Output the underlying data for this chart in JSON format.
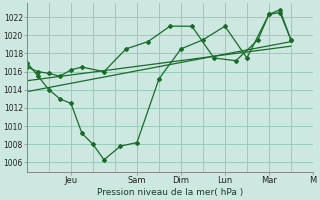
{
  "background_color": "#cce8e0",
  "grid_color": "#99ccbb",
  "line_color": "#1a6b2a",
  "title": "Pression niveau de la mer( hPa )",
  "ylabel_ticks": [
    1006,
    1008,
    1010,
    1012,
    1014,
    1016,
    1018,
    1020,
    1022
  ],
  "ylim": [
    1005.0,
    1023.5
  ],
  "xlim": [
    0,
    48
  ],
  "day_labels": [
    "Jeu",
    "Sam",
    "Dim",
    "Lun",
    "Mar",
    "M"
  ],
  "day_positions": [
    8,
    20,
    28,
    36,
    44,
    52
  ],
  "series1_x": [
    0,
    2,
    4,
    6,
    8,
    10,
    12,
    14,
    17,
    20,
    24,
    28,
    32,
    36,
    40,
    44,
    46,
    48
  ],
  "series1_y": [
    1017.0,
    1015.5,
    1014.0,
    1013.0,
    1012.5,
    1009.2,
    1008.0,
    1006.3,
    1007.8,
    1008.2,
    1015.2,
    1018.5,
    1019.5,
    1021.0,
    1017.5,
    1022.3,
    1022.5,
    1019.5
  ],
  "series2_x": [
    0,
    2,
    4,
    6,
    8,
    10,
    14,
    18,
    22,
    26,
    30,
    34,
    38,
    42,
    44,
    46,
    48
  ],
  "series2_y": [
    1016.5,
    1016.0,
    1015.8,
    1015.5,
    1016.2,
    1016.5,
    1016.0,
    1018.5,
    1019.3,
    1021.0,
    1021.0,
    1017.5,
    1017.2,
    1019.5,
    1022.3,
    1022.8,
    1019.5
  ],
  "trend1_x": [
    0,
    48
  ],
  "trend1_y": [
    1015.0,
    1018.8
  ],
  "trend2_x": [
    0,
    48
  ],
  "trend2_y": [
    1013.8,
    1019.3
  ]
}
